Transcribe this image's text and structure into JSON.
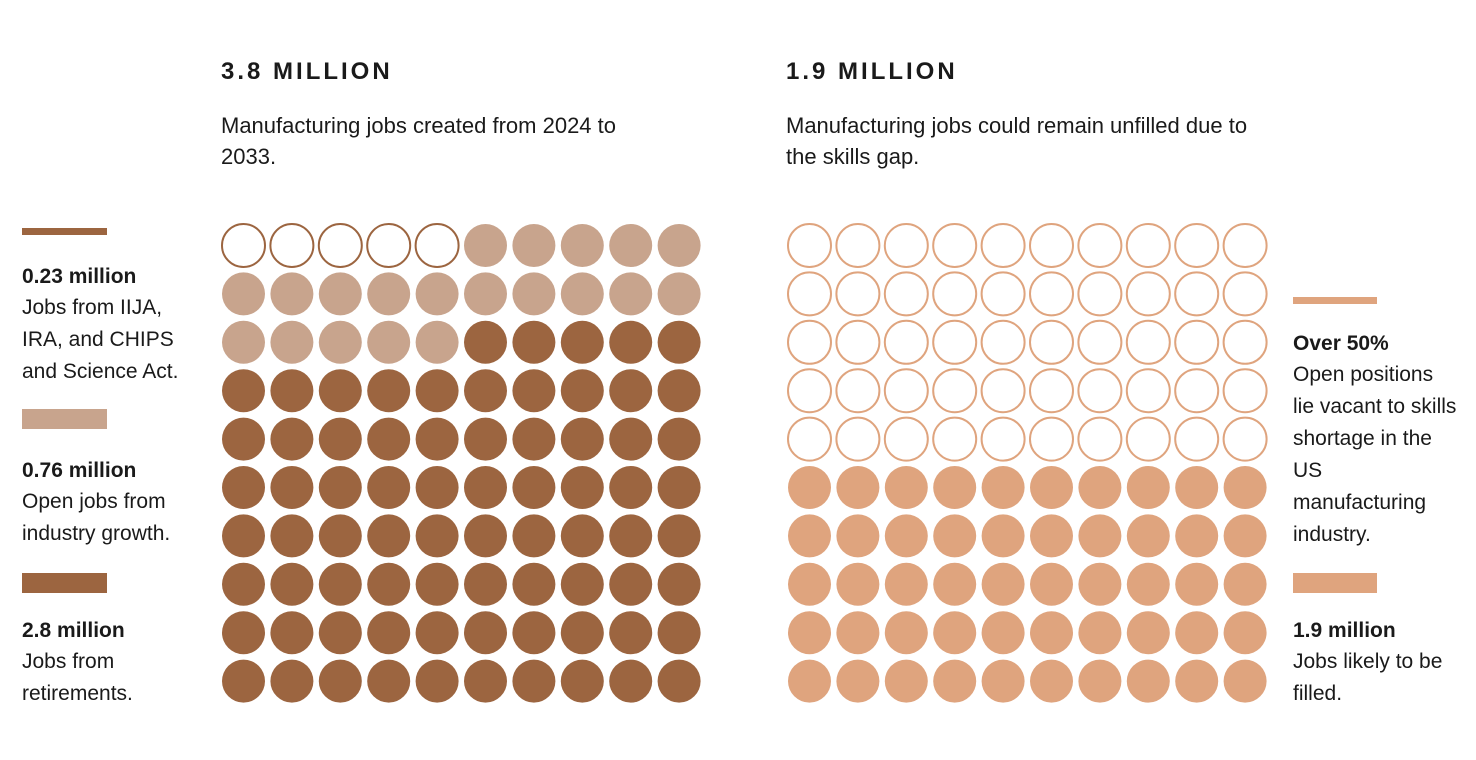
{
  "panels": [
    {
      "headline": "3.8 MILLION",
      "subtext": "Manufacturing jobs created from 2024 to 2033."
    },
    {
      "headline": "1.9 MILLION",
      "subtext": "Manufacturing jobs could remain unfilled due to the skills gap."
    }
  ],
  "legend_left": [
    {
      "value": "0.23 million",
      "desc": "Jobs from IIJA, IRA, and CHIPS and Science Act.",
      "color": "#9C6540",
      "style": "outline"
    },
    {
      "value": "0.76 million",
      "desc": "Open jobs from industry growth.",
      "color": "#C8A48D",
      "style": "filled"
    },
    {
      "value": "2.8 million",
      "desc": "Jobs from retirements.",
      "color": "#9C6540",
      "style": "filled"
    }
  ],
  "legend_right": [
    {
      "value": "Over 50%",
      "desc": "Open positions lie vacant to skills shortage in the US manufacturing industry.",
      "color": "#DFA47E",
      "style": "outline"
    },
    {
      "value": "1.9 million",
      "desc": "Jobs likely to be filled.",
      "color": "#DFA47E",
      "style": "filled"
    }
  ],
  "chart_data": [
    {
      "type": "waffle",
      "grid": [
        10,
        10
      ],
      "units": 100,
      "total": "3.8 MILLION",
      "series": [
        {
          "name": "0.23 million",
          "count": 5,
          "style": "outline",
          "color": "#9C6540"
        },
        {
          "name": "0.76 million",
          "count": 20,
          "style": "filled",
          "color": "#C8A48D"
        },
        {
          "name": "2.8 million",
          "count": 75,
          "style": "filled",
          "color": "#9C6540"
        }
      ]
    },
    {
      "type": "waffle",
      "grid": [
        10,
        10
      ],
      "units": 100,
      "total": "1.9 MILLION",
      "series": [
        {
          "name": "Over 50%",
          "count": 50,
          "style": "outline",
          "color": "#DFA47E"
        },
        {
          "name": "1.9 million",
          "count": 50,
          "style": "filled",
          "color": "#DFA47E"
        }
      ]
    }
  ]
}
